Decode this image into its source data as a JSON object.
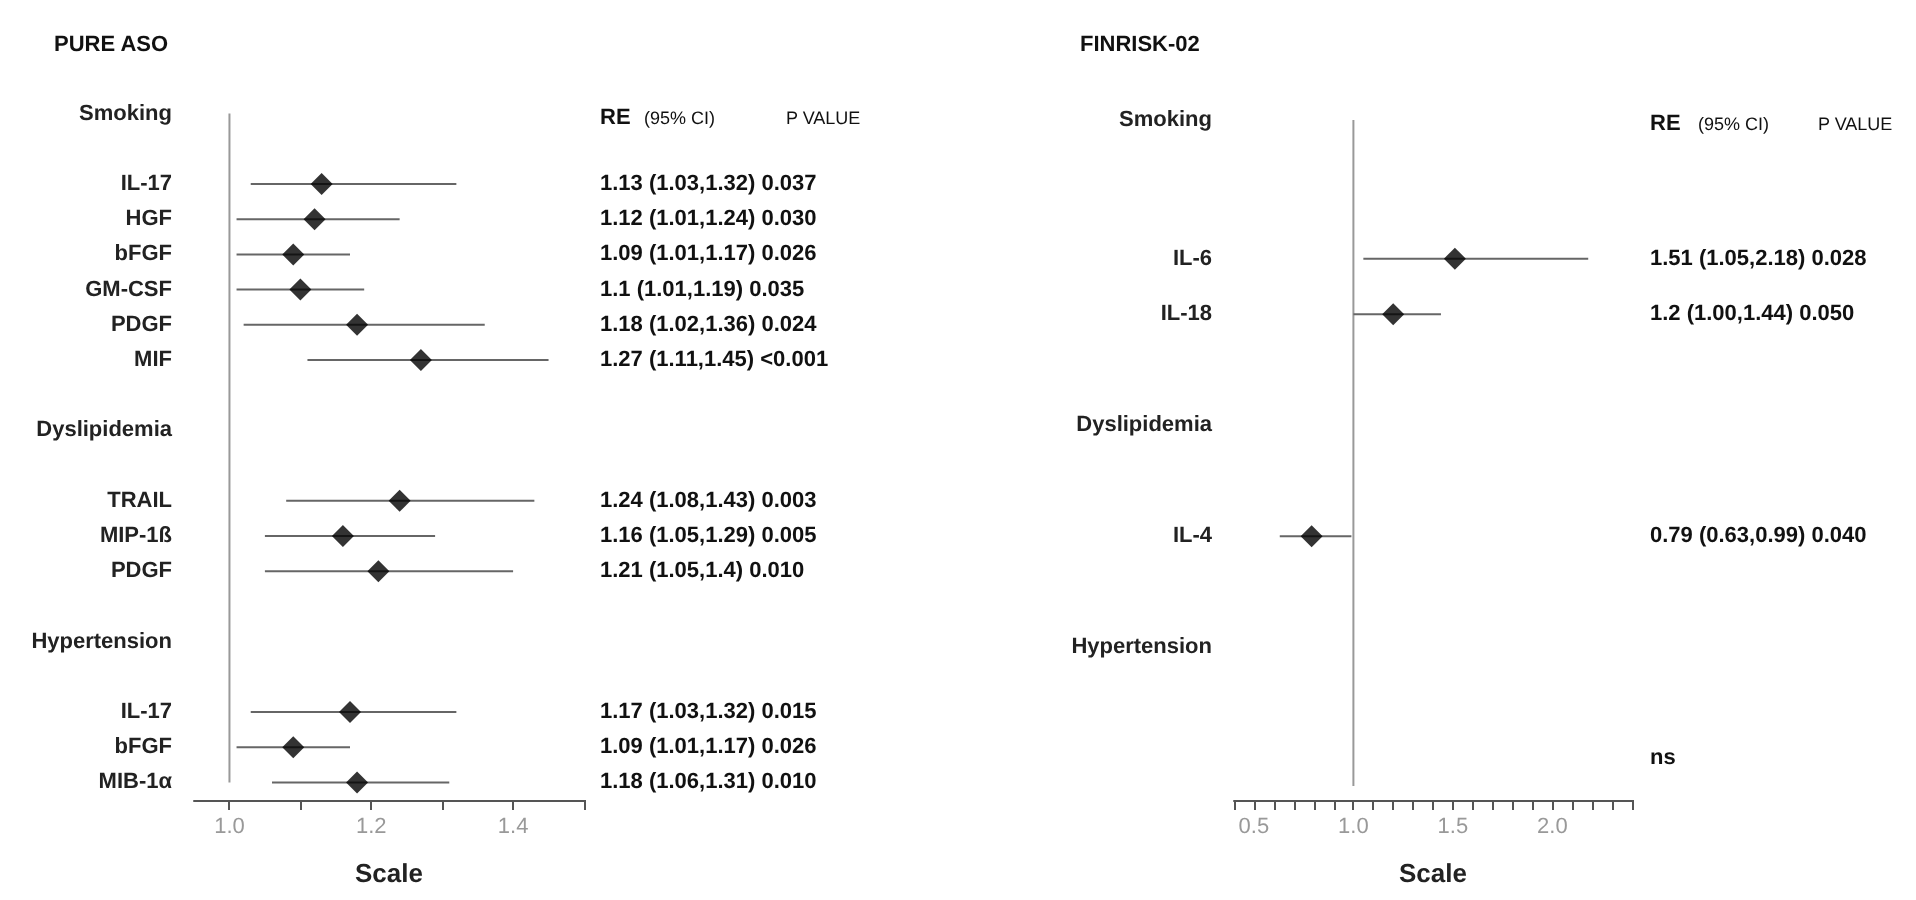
{
  "chart_data": [
    {
      "type": "scatter",
      "title": "PURE ASO",
      "xlabel": "Scale",
      "orientation": "horizontal",
      "color": "#000000",
      "marker": "diamond",
      "categories": [
        "Smoking",
        null,
        "IL-17",
        "HGF",
        "bFGF",
        "GM-CSF",
        "PDGF",
        "MIF",
        null,
        "Dyslipidemia",
        null,
        "TRAIL",
        "MIP-1ß",
        "PDGF",
        null,
        "Hypertension",
        null,
        "IL-17",
        "bFGF",
        "MIB-1α"
      ],
      "values": [
        null,
        null,
        1.13,
        1.12,
        1.09,
        1.1,
        1.18,
        1.27,
        null,
        null,
        null,
        1.24,
        1.16,
        1.21,
        null,
        null,
        null,
        1.17,
        1.09,
        1.18
      ],
      "errors": [
        null,
        null,
        [
          1.03,
          1.32
        ],
        [
          1.01,
          1.24
        ],
        [
          1.01,
          1.17
        ],
        [
          1.01,
          1.19
        ],
        [
          1.02,
          1.36
        ],
        [
          1.11,
          1.45
        ],
        null,
        null,
        null,
        [
          1.08,
          1.43
        ],
        [
          1.05,
          1.29
        ],
        [
          1.05,
          1.4
        ],
        null,
        null,
        null,
        [
          1.03,
          1.32
        ],
        [
          1.01,
          1.17
        ],
        [
          1.06,
          1.31
        ]
      ],
      "y2_categories": [
        null,
        null,
        "1.13 (1.03,1.32) 0.037",
        "1.12 (1.01,1.24) 0.030",
        "1.09 (1.01,1.17) 0.026",
        "1.1 (1.01,1.19) 0.035",
        "1.18 (1.02,1.36) 0.024",
        "1.27 (1.11,1.45) <0.001",
        null,
        null,
        null,
        "1.24 (1.08,1.43) 0.003",
        "1.16 (1.05,1.29) 0.005",
        "1.21 (1.05,1.4) 0.010",
        null,
        null,
        null,
        "1.17 (1.03,1.32) 0.015",
        "1.09 (1.01,1.17) 0.026",
        "1.18 (1.06,1.31) 0.010"
      ],
      "xlim": [
        0.95,
        1.5
      ],
      "xticks": [
        {
          "value": 1.0,
          "label": "1.0"
        },
        {
          "value": 1.1,
          "label": null
        },
        {
          "value": 1.2,
          "label": "1.2"
        },
        {
          "value": 1.3,
          "label": null
        },
        {
          "value": 1.4,
          "label": "1.4"
        },
        {
          "value": 1.5,
          "label": null
        }
      ],
      "ref_lines": [
        {
          "axis": "x",
          "value": 1,
          "color": "#999999"
        }
      ],
      "annotations": [
        "RE",
        "(95% CI)",
        "P VALUE"
      ]
    },
    {
      "type": "scatter",
      "title": "FINRISK-02",
      "xlabel": "Scale",
      "orientation": "horizontal",
      "color": "#000000",
      "marker": "diamond",
      "categories": [
        "Smoking",
        null,
        null,
        null,
        null,
        "IL-6",
        null,
        "IL-18",
        null,
        null,
        null,
        "Dyslipidemia",
        null,
        null,
        null,
        "IL-4",
        null,
        null,
        null,
        "Hypertension",
        null,
        null,
        null,
        null,
        null
      ],
      "values": [
        null,
        null,
        null,
        null,
        null,
        1.51,
        null,
        1.2,
        null,
        null,
        null,
        null,
        null,
        null,
        null,
        0.79,
        null,
        null,
        null,
        null,
        null,
        null,
        null,
        null,
        null
      ],
      "errors": [
        null,
        null,
        null,
        null,
        null,
        [
          1.05,
          2.18
        ],
        null,
        [
          1.0,
          1.44
        ],
        null,
        null,
        null,
        null,
        null,
        null,
        null,
        [
          0.63,
          0.99
        ],
        null,
        null,
        null,
        null,
        null,
        null,
        null,
        null,
        null
      ],
      "y2_categories": [
        null,
        null,
        null,
        null,
        null,
        "1.51 (1.05,2.18) 0.028",
        null,
        "1.2 (1.00,1.44) 0.050",
        null,
        null,
        null,
        null,
        null,
        null,
        null,
        "0.79 (0.63,0.99) 0.040",
        null,
        null,
        null,
        null,
        null,
        null,
        null,
        "ns",
        null
      ],
      "xlim": [
        0.4,
        2.4
      ],
      "xticks": [
        {
          "value": 0.4,
          "label": null
        },
        {
          "value": 0.5,
          "label": "0.5"
        },
        {
          "value": 0.6,
          "label": null
        },
        {
          "value": 0.7,
          "label": null
        },
        {
          "value": 0.8,
          "label": null
        },
        {
          "value": 0.9,
          "label": null
        },
        {
          "value": 1.0,
          "label": "1.0"
        },
        {
          "value": 1.1,
          "label": null
        },
        {
          "value": 1.2,
          "label": null
        },
        {
          "value": 1.3,
          "label": null
        },
        {
          "value": 1.4,
          "label": null
        },
        {
          "value": 1.5,
          "label": "1.5"
        },
        {
          "value": 1.6,
          "label": null
        },
        {
          "value": 1.7,
          "label": null
        },
        {
          "value": 1.8,
          "label": null
        },
        {
          "value": 1.9,
          "label": null
        },
        {
          "value": 2.0,
          "label": "2.0"
        },
        {
          "value": 2.1,
          "label": null
        },
        {
          "value": 2.2,
          "label": null
        },
        {
          "value": 2.3,
          "label": null
        },
        {
          "value": 2.4,
          "label": null
        }
      ],
      "ref_lines": [
        {
          "axis": "x",
          "value": 1,
          "color": "#999999"
        }
      ],
      "annotations": [
        "RE",
        "(95% CI)",
        "P VALUE"
      ]
    }
  ]
}
